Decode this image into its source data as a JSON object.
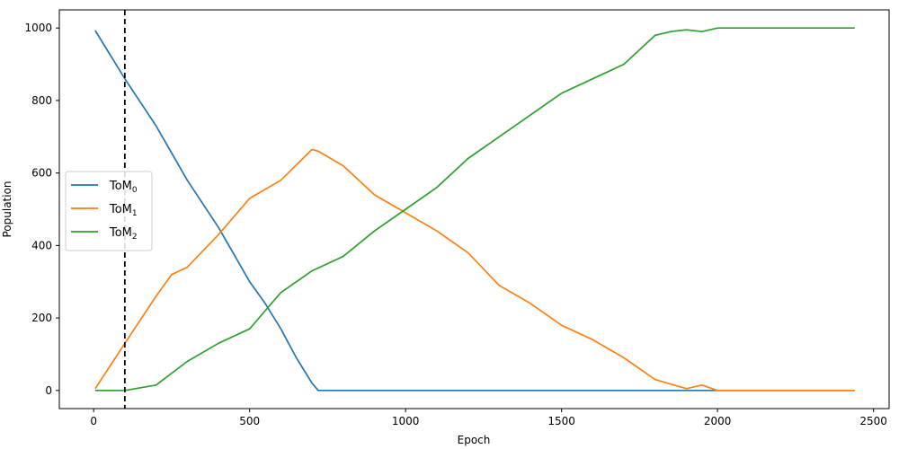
{
  "chart_data": {
    "type": "line",
    "title": "",
    "xlabel": "Epoch",
    "ylabel": "Population",
    "xlim": [
      -110,
      2550
    ],
    "ylim": [
      -50,
      1050
    ],
    "xticks": [
      0,
      500,
      1000,
      1500,
      2000,
      2500
    ],
    "yticks": [
      0,
      200,
      400,
      600,
      800,
      1000
    ],
    "grid": false,
    "legend": "center-left",
    "vline": {
      "x": 100,
      "style": "dashed",
      "color": "#000000"
    },
    "series": [
      {
        "name": "ToM",
        "subscript": "0",
        "color": "#1f77b4",
        "x": [
          5,
          100,
          200,
          300,
          400,
          500,
          550,
          600,
          650,
          700,
          720,
          800,
          1000,
          1500,
          2000,
          2440
        ],
        "y": [
          993,
          860,
          730,
          580,
          450,
          300,
          240,
          170,
          90,
          20,
          0,
          0,
          0,
          0,
          0,
          0
        ]
      },
      {
        "name": "ToM",
        "subscript": "1",
        "color": "#ff7f0e",
        "x": [
          5,
          100,
          200,
          250,
          300,
          400,
          500,
          600,
          700,
          720,
          800,
          900,
          1000,
          1100,
          1200,
          1300,
          1400,
          1500,
          1600,
          1700,
          1800,
          1900,
          1950,
          2000,
          2440
        ],
        "y": [
          5,
          130,
          260,
          320,
          340,
          430,
          530,
          580,
          665,
          660,
          620,
          540,
          490,
          440,
          380,
          290,
          240,
          180,
          140,
          90,
          30,
          5,
          15,
          0,
          0
        ]
      },
      {
        "name": "ToM",
        "subscript": "2",
        "color": "#2ca02c",
        "x": [
          5,
          100,
          200,
          300,
          400,
          500,
          550,
          600,
          700,
          800,
          900,
          1000,
          1100,
          1200,
          1300,
          1400,
          1500,
          1600,
          1700,
          1800,
          1850,
          1900,
          1950,
          2000,
          2440
        ],
        "y": [
          0,
          0,
          15,
          80,
          130,
          170,
          220,
          270,
          330,
          370,
          440,
          500,
          560,
          640,
          700,
          760,
          820,
          860,
          900,
          980,
          990,
          995,
          990,
          1000,
          1000
        ]
      }
    ]
  }
}
